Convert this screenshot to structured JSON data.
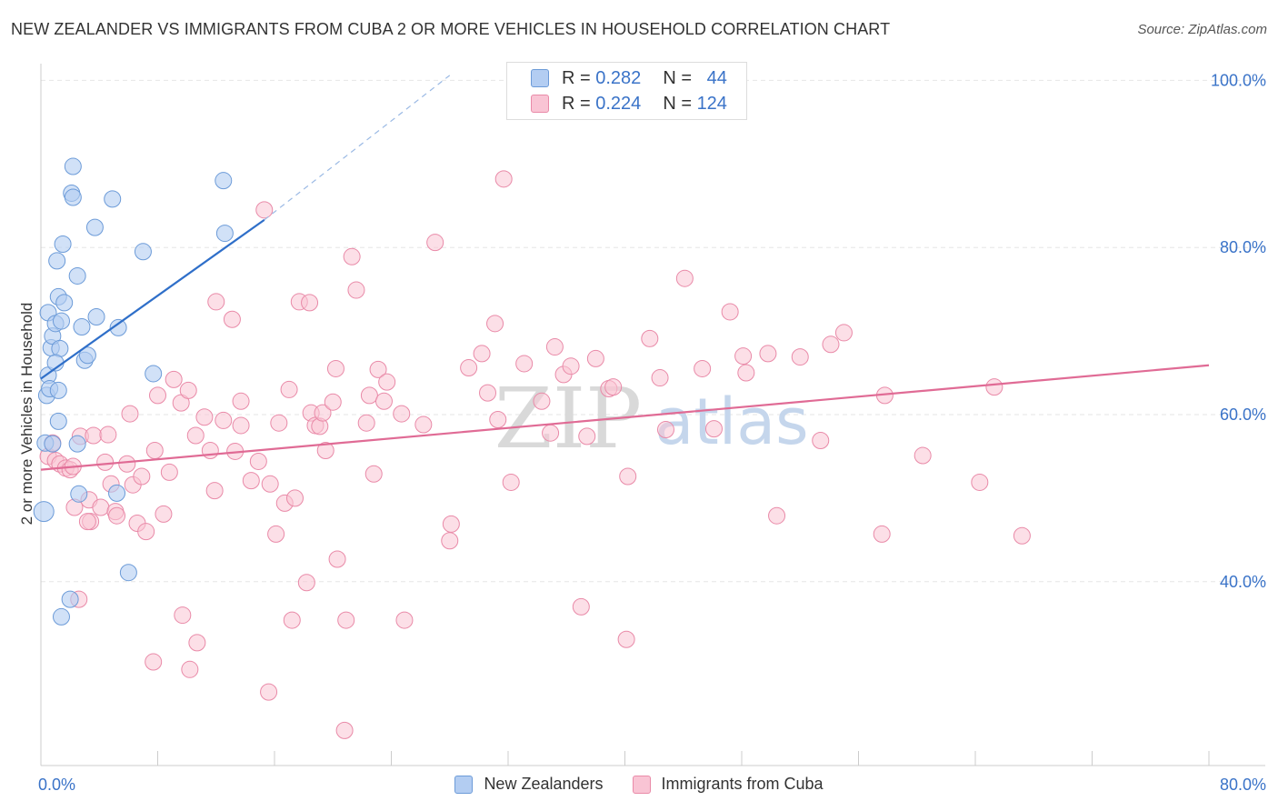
{
  "title": "NEW ZEALANDER VS IMMIGRANTS FROM CUBA 2 OR MORE VEHICLES IN HOUSEHOLD CORRELATION CHART",
  "source": "Source: ZipAtlas.com",
  "watermark": {
    "zip": "ZIP",
    "atlas": "atlas"
  },
  "legend": {
    "r_label": "R =",
    "n_label": "N =",
    "rows": [
      {
        "name": "New Zealanders",
        "r": "0.282",
        "n": "44"
      },
      {
        "name": "Immigrants from Cuba",
        "r": "0.224",
        "n": "124"
      }
    ]
  },
  "colors": {
    "blue_fill": "#b3cdf2",
    "blue_stroke": "#6c9bd8",
    "blue_line": "#2f6fc9",
    "pink_fill": "#f9c4d4",
    "pink_stroke": "#e98aa8",
    "pink_line": "#e06b95",
    "axis_text": "#3a73c8",
    "grid": "#e6e6e6"
  },
  "chart_data": {
    "type": "scatter",
    "title": "NEW ZEALANDER VS IMMIGRANTS FROM CUBA 2 OR MORE VEHICLES IN HOUSEHOLD CORRELATION CHART",
    "xlabel": "",
    "ylabel": "2 or more Vehicles in Household",
    "xlim": [
      0,
      80
    ],
    "ylim": [
      18,
      102
    ],
    "x_tick_labels": [
      "0.0%",
      "80.0%"
    ],
    "y_ticks": [
      40,
      60,
      80,
      100
    ],
    "y_tick_labels": [
      "40.0%",
      "60.0%",
      "80.0%",
      "100.0%"
    ],
    "series": [
      {
        "name": "New Zealanders",
        "r": 0.282,
        "n": 44,
        "trend": {
          "x": [
            0,
            15.3
          ],
          "y": [
            64.3,
            83.3
          ],
          "dashed_to": [
            28,
            100.6
          ]
        },
        "points": [
          [
            0.2,
            48.4
          ],
          [
            0.3,
            56.6
          ],
          [
            0.4,
            62.3
          ],
          [
            0.5,
            64.7
          ],
          [
            0.6,
            63.1
          ],
          [
            0.7,
            68.0
          ],
          [
            0.5,
            72.2
          ],
          [
            0.8,
            69.4
          ],
          [
            1.0,
            70.9
          ],
          [
            1.2,
            74.1
          ],
          [
            1.1,
            78.4
          ],
          [
            1.5,
            80.4
          ],
          [
            1.6,
            73.4
          ],
          [
            1.4,
            71.2
          ],
          [
            1.3,
            67.9
          ],
          [
            1.0,
            66.2
          ],
          [
            1.2,
            62.9
          ],
          [
            1.2,
            59.2
          ],
          [
            0.8,
            56.5
          ],
          [
            2.5,
            76.6
          ],
          [
            2.1,
            86.5
          ],
          [
            2.2,
            86.0
          ],
          [
            2.2,
            89.7
          ],
          [
            2.8,
            70.5
          ],
          [
            3.0,
            66.5
          ],
          [
            3.2,
            67.1
          ],
          [
            3.7,
            82.4
          ],
          [
            3.8,
            71.7
          ],
          [
            4.9,
            85.8
          ],
          [
            5.3,
            70.4
          ],
          [
            7.0,
            79.5
          ],
          [
            7.7,
            64.9
          ],
          [
            12.5,
            88.0
          ],
          [
            12.6,
            81.7
          ],
          [
            2.5,
            56.5
          ],
          [
            2.6,
            50.5
          ],
          [
            5.2,
            50.6
          ],
          [
            6.0,
            41.1
          ],
          [
            2.0,
            37.9
          ],
          [
            1.4,
            35.8
          ]
        ]
      },
      {
        "name": "Immigrants from Cuba",
        "r": 0.224,
        "n": 124,
        "trend": {
          "x": [
            0,
            80
          ],
          "y": [
            53.4,
            65.9
          ]
        },
        "points": [
          [
            0.5,
            55.0
          ],
          [
            0.8,
            56.6
          ],
          [
            1.0,
            54.5
          ],
          [
            1.3,
            54.1
          ],
          [
            1.7,
            53.6
          ],
          [
            2.0,
            53.4
          ],
          [
            2.2,
            53.8
          ],
          [
            2.7,
            57.4
          ],
          [
            3.3,
            49.8
          ],
          [
            3.4,
            47.2
          ],
          [
            3.6,
            57.5
          ],
          [
            4.1,
            48.9
          ],
          [
            4.4,
            54.3
          ],
          [
            4.6,
            57.6
          ],
          [
            4.8,
            51.7
          ],
          [
            5.1,
            48.4
          ],
          [
            5.2,
            47.9
          ],
          [
            5.9,
            54.1
          ],
          [
            6.1,
            60.1
          ],
          [
            6.3,
            51.6
          ],
          [
            6.6,
            47.0
          ],
          [
            6.9,
            52.6
          ],
          [
            7.2,
            46.0
          ],
          [
            7.8,
            55.7
          ],
          [
            8.0,
            62.3
          ],
          [
            8.4,
            48.1
          ],
          [
            8.8,
            53.1
          ],
          [
            9.1,
            64.2
          ],
          [
            9.6,
            61.4
          ],
          [
            10.1,
            62.9
          ],
          [
            10.6,
            57.5
          ],
          [
            11.2,
            59.7
          ],
          [
            11.6,
            55.7
          ],
          [
            11.9,
            50.9
          ],
          [
            12.0,
            73.5
          ],
          [
            12.5,
            59.3
          ],
          [
            13.1,
            71.4
          ],
          [
            13.3,
            55.6
          ],
          [
            13.7,
            58.7
          ],
          [
            13.7,
            61.6
          ],
          [
            14.4,
            52.1
          ],
          [
            14.9,
            54.4
          ],
          [
            15.3,
            84.5
          ],
          [
            15.7,
            51.7
          ],
          [
            16.1,
            45.7
          ],
          [
            16.3,
            59.0
          ],
          [
            16.7,
            49.4
          ],
          [
            17.0,
            63.0
          ],
          [
            17.4,
            50.0
          ],
          [
            17.7,
            73.5
          ],
          [
            18.2,
            39.9
          ],
          [
            18.5,
            60.2
          ],
          [
            18.8,
            58.7
          ],
          [
            19.1,
            58.6
          ],
          [
            19.3,
            60.2
          ],
          [
            19.5,
            55.7
          ],
          [
            20.0,
            61.5
          ],
          [
            20.2,
            65.5
          ],
          [
            20.3,
            42.7
          ],
          [
            21.3,
            78.9
          ],
          [
            21.6,
            74.9
          ],
          [
            22.3,
            59.0
          ],
          [
            22.5,
            62.3
          ],
          [
            22.8,
            52.9
          ],
          [
            23.1,
            65.4
          ],
          [
            23.5,
            61.6
          ],
          [
            23.7,
            63.9
          ],
          [
            24.7,
            60.1
          ],
          [
            26.2,
            58.8
          ],
          [
            27.0,
            80.6
          ],
          [
            28.0,
            44.9
          ],
          [
            28.1,
            46.9
          ],
          [
            29.3,
            65.6
          ],
          [
            30.2,
            67.3
          ],
          [
            30.6,
            62.6
          ],
          [
            31.1,
            70.9
          ],
          [
            31.3,
            59.4
          ],
          [
            31.7,
            88.2
          ],
          [
            32.2,
            51.9
          ],
          [
            33.1,
            66.1
          ],
          [
            34.3,
            61.6
          ],
          [
            34.9,
            57.8
          ],
          [
            35.2,
            68.1
          ],
          [
            35.8,
            64.8
          ],
          [
            36.3,
            65.8
          ],
          [
            37.0,
            37.0
          ],
          [
            37.4,
            57.4
          ],
          [
            38.0,
            66.7
          ],
          [
            38.9,
            63.1
          ],
          [
            39.2,
            63.3
          ],
          [
            40.2,
            52.6
          ],
          [
            41.7,
            69.1
          ],
          [
            42.4,
            64.4
          ],
          [
            42.8,
            58.2
          ],
          [
            44.1,
            76.3
          ],
          [
            45.3,
            65.5
          ],
          [
            46.1,
            58.3
          ],
          [
            47.2,
            72.3
          ],
          [
            48.1,
            67.0
          ],
          [
            48.3,
            65.0
          ],
          [
            49.8,
            67.3
          ],
          [
            50.4,
            47.9
          ],
          [
            52.0,
            66.9
          ],
          [
            53.4,
            56.9
          ],
          [
            54.1,
            68.4
          ],
          [
            55.0,
            69.8
          ],
          [
            57.6,
            45.7
          ],
          [
            57.8,
            62.3
          ],
          [
            60.4,
            55.1
          ],
          [
            64.3,
            51.9
          ],
          [
            65.3,
            63.3
          ],
          [
            67.2,
            45.5
          ],
          [
            2.3,
            48.9
          ],
          [
            3.2,
            47.2
          ],
          [
            2.6,
            37.9
          ],
          [
            9.7,
            36.0
          ],
          [
            10.7,
            32.7
          ],
          [
            7.7,
            30.4
          ],
          [
            10.2,
            29.5
          ],
          [
            17.2,
            35.4
          ],
          [
            20.9,
            35.4
          ],
          [
            24.9,
            35.4
          ],
          [
            15.6,
            26.8
          ],
          [
            20.8,
            22.2
          ],
          [
            18.4,
            73.4
          ],
          [
            40.1,
            33.1
          ]
        ]
      }
    ],
    "legend_position": "top-center"
  }
}
